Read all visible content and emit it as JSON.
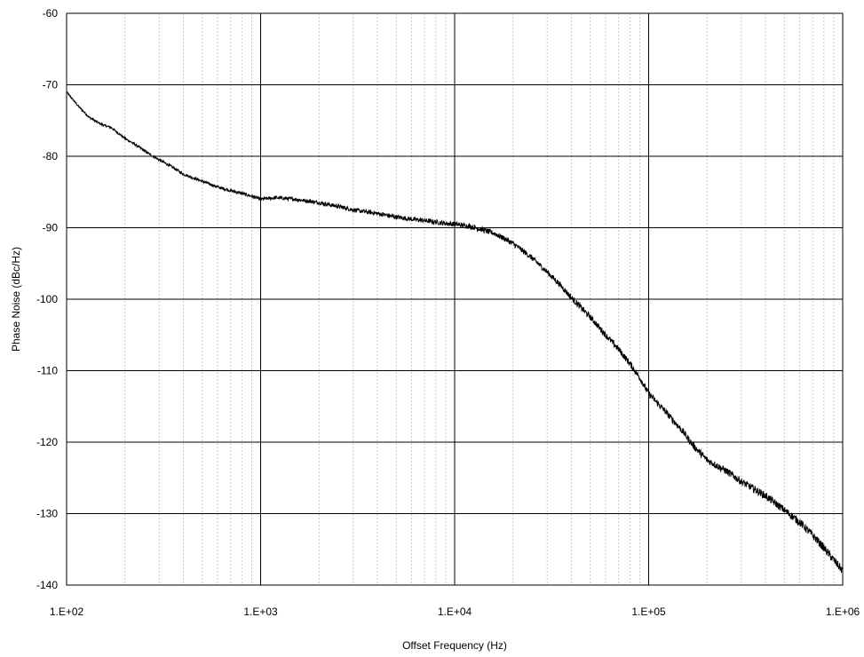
{
  "chart_data": {
    "type": "line",
    "title": "",
    "xlabel": "Offset Frequency (Hz)",
    "ylabel": "Phase Noise (dBc/Hz)",
    "xscale": "log",
    "xlim": [
      100,
      1000000
    ],
    "ylim": [
      -140,
      -60
    ],
    "grid": true,
    "legend": "none",
    "x_ticks": [
      100,
      1000,
      10000,
      100000,
      1000000
    ],
    "x_tick_labels": [
      "1.E+02",
      "1.E+03",
      "1.E+04",
      "1.E+05",
      "1.E+06"
    ],
    "y_ticks": [
      -60,
      -70,
      -80,
      -90,
      -100,
      -110,
      -120,
      -130,
      -140
    ],
    "y_tick_labels": [
      "-60",
      "-70",
      "-80",
      "-90",
      "-100",
      "-110",
      "-120",
      "-130",
      "-140"
    ],
    "line_color": "#000000",
    "series": [
      {
        "x": [
          100,
          115,
          130,
          150,
          170,
          200,
          230,
          260,
          300,
          350,
          400,
          500,
          600,
          700,
          800,
          900,
          1000,
          1200,
          1500,
          2000,
          2500,
          3000,
          4000,
          5000,
          6000,
          7000,
          8000,
          9000,
          10000,
          12000,
          14000,
          16000,
          18000,
          20000,
          25000,
          30000,
          35000,
          40000,
          50000,
          60000,
          70000,
          80000,
          90000,
          100000,
          120000,
          150000,
          170000,
          200000,
          250000,
          300000,
          400000,
          500000,
          600000,
          700000,
          800000,
          900000,
          1000000
        ],
        "y": [
          -71,
          -73,
          -74.5,
          -75.5,
          -76,
          -77.5,
          -78.5,
          -79.5,
          -80.5,
          -81.5,
          -82.5,
          -83.5,
          -84.3,
          -84.8,
          -85.2,
          -85.6,
          -86,
          -85.8,
          -86,
          -86.5,
          -87,
          -87.5,
          -88,
          -88.5,
          -88.8,
          -89,
          -89.2,
          -89.4,
          -89.5,
          -89.8,
          -90.3,
          -90.8,
          -91.5,
          -92.2,
          -94.2,
          -96.2,
          -98,
          -99.8,
          -102.5,
          -105,
          -107,
          -109,
          -111,
          -113.2,
          -115.5,
          -118.5,
          -120.5,
          -122.5,
          -124,
          -125.5,
          -127.5,
          -129.5,
          -131.2,
          -133,
          -134.8,
          -136.5,
          -138
        ]
      }
    ]
  }
}
